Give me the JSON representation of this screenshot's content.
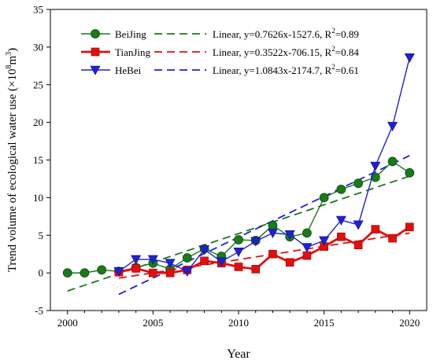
{
  "chart_data": {
    "type": "line",
    "xlabel": "Year",
    "ylabel_main": "Trend volume of ecological water use (×10",
    "ylabel_exp": "8",
    "ylabel_unit_mid": "m",
    "ylabel_unit_exp": "3",
    "ylabel_close": ")",
    "xlim": [
      1999,
      2021
    ],
    "ylim": [
      -5,
      35
    ],
    "xticks": [
      2000,
      2005,
      2010,
      2015,
      2020
    ],
    "yticks": [
      -5,
      0,
      5,
      10,
      15,
      20,
      25,
      30,
      35
    ],
    "grid": false,
    "legend_position": "top-left",
    "series": [
      {
        "name": "BeiJing",
        "color": "#1a7a1a",
        "marker": "circle",
        "x": [
          2000,
          2001,
          2002,
          2003,
          2004,
          2005,
          2006,
          2007,
          2008,
          2009,
          2010,
          2011,
          2012,
          2013,
          2014,
          2015,
          2016,
          2017,
          2018,
          2019,
          2020
        ],
        "y": [
          0.0,
          0.0,
          0.4,
          0.2,
          0.7,
          1.3,
          0.5,
          2.0,
          3.2,
          2.2,
          4.4,
          4.3,
          6.3,
          4.8,
          5.3,
          10.0,
          11.1,
          11.9,
          12.7,
          14.8,
          13.3
        ],
        "fit": {
          "label": "Linear, y=0.7626x-1527.6, R",
          "exp": "2",
          "r2": "=0.89",
          "slope": 0.7626,
          "intercept": -1527.6,
          "x_range": [
            2000,
            2020
          ]
        }
      },
      {
        "name": "TianJing",
        "color": "#e01010",
        "marker": "square",
        "x": [
          2003,
          2004,
          2005,
          2006,
          2007,
          2008,
          2009,
          2010,
          2011,
          2012,
          2013,
          2014,
          2015,
          2016,
          2017,
          2018,
          2019,
          2020
        ],
        "y": [
          0.1,
          0.6,
          0.0,
          0.0,
          0.4,
          1.6,
          1.3,
          0.8,
          0.5,
          2.5,
          1.4,
          2.3,
          3.5,
          4.8,
          3.7,
          5.8,
          4.6,
          6.1
        ],
        "fit": {
          "label": "Linear, y=0.3522x-706.15, R",
          "exp": "2",
          "r2": "=0.84",
          "slope": 0.3522,
          "intercept": -706.15,
          "x_range": [
            2003,
            2020
          ]
        }
      },
      {
        "name": "HeBei",
        "color": "#2020d8",
        "marker": "triangle-down",
        "x": [
          2003,
          2004,
          2005,
          2006,
          2007,
          2008,
          2009,
          2010,
          2011,
          2012,
          2013,
          2014,
          2015,
          2016,
          2017,
          2018,
          2019,
          2020
        ],
        "y": [
          0.2,
          1.8,
          1.8,
          1.3,
          0.2,
          3.1,
          1.5,
          2.8,
          4.2,
          5.3,
          5.1,
          3.4,
          4.3,
          7.0,
          6.4,
          14.2,
          19.5,
          28.6
        ],
        "fit": {
          "label": "Linear, y=1.0843x-2174.7, R",
          "exp": "2",
          "r2": "=0.61",
          "slope": 1.0843,
          "intercept": -2174.7,
          "x_range": [
            2003,
            2020
          ]
        }
      }
    ]
  }
}
